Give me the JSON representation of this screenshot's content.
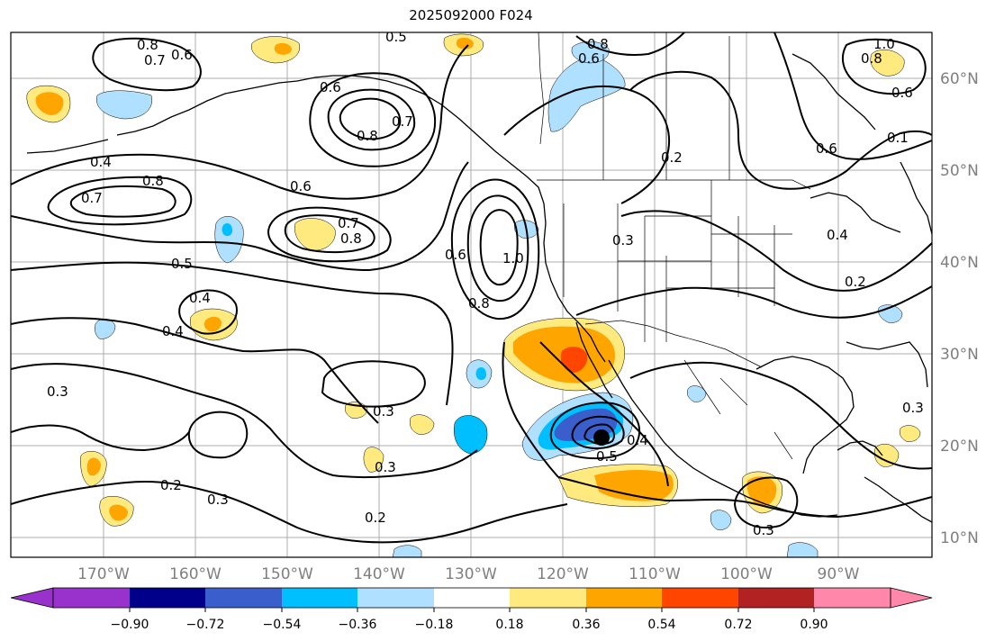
{
  "title": "2025092000 F024",
  "map": {
    "lon_labels": [
      "170°W",
      "160°W",
      "150°W",
      "140°W",
      "130°W",
      "120°W",
      "110°W",
      "100°W",
      "90°W"
    ],
    "lat_labels": [
      "60°N",
      "50°N",
      "40°N",
      "30°N",
      "20°N",
      "10°N"
    ],
    "contour_labels": [
      "0.8",
      "0.7",
      "0.6",
      "0.5",
      "0.4",
      "0.3",
      "0.2",
      "0.1",
      "1.0"
    ],
    "contour_color": "#000000",
    "gridline_color": "#9a9a9a",
    "coastline_color": "#000000"
  },
  "colorbar": {
    "tick_labels": [
      "−0.90",
      "−0.72",
      "−0.54",
      "−0.36",
      "−0.18",
      "0.18",
      "0.36",
      "0.54",
      "0.72",
      "0.90"
    ],
    "colors": [
      "#9932cc",
      "#00008b",
      "#3a5fcd",
      "#00bfff",
      "#afe0ff",
      "#ffffff",
      "#ffea80",
      "#ffa500",
      "#ff4500",
      "#b22222",
      "#ff88aa"
    ]
  }
}
